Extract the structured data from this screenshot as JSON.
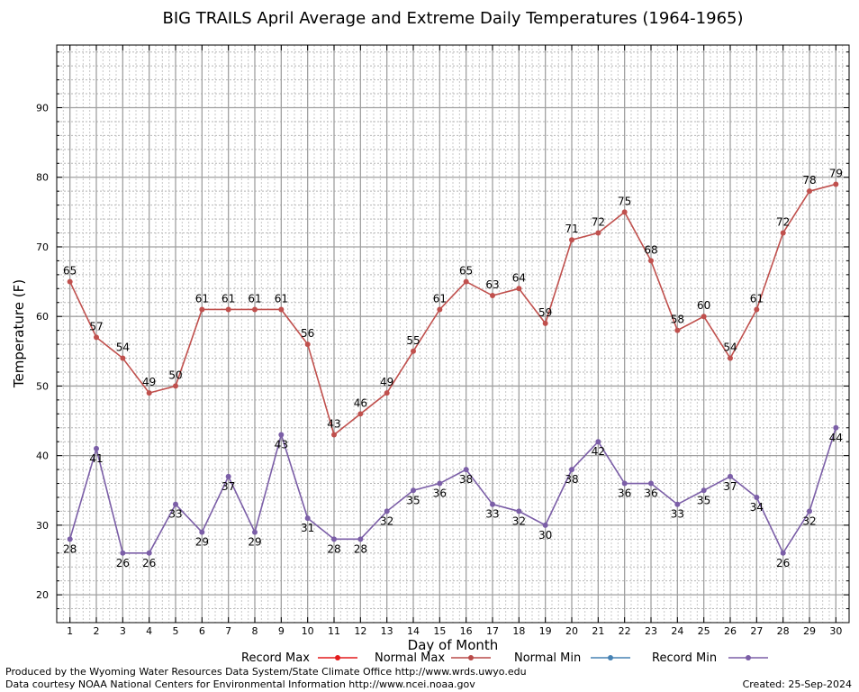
{
  "chart_data": {
    "type": "line",
    "title": "BIG TRAILS April Average and Extreme Daily Temperatures (1964-1965)",
    "xlabel": "Day of Month",
    "ylabel": "Temperature (F)",
    "x": [
      1,
      2,
      3,
      4,
      5,
      6,
      7,
      8,
      9,
      10,
      11,
      12,
      13,
      14,
      15,
      16,
      17,
      18,
      19,
      20,
      21,
      22,
      23,
      24,
      25,
      26,
      27,
      28,
      29,
      30
    ],
    "xlim": [
      0.5,
      30.5
    ],
    "ylim": [
      16,
      99
    ],
    "yticks": [
      20,
      30,
      40,
      50,
      60,
      70,
      80,
      90
    ],
    "grid": true,
    "legend": [
      {
        "name": "Record Max",
        "color": "#e41a1c"
      },
      {
        "name": "Normal Max",
        "color": "#b94a48"
      },
      {
        "name": "Normal Min",
        "color": "#4682b4"
      },
      {
        "name": "Record Min",
        "color": "#7b5ea7"
      }
    ],
    "series": [
      {
        "name": "Record Max",
        "color": "#c0504d",
        "label_pos": "above",
        "values": [
          65,
          57,
          54,
          49,
          50,
          61,
          61,
          61,
          61,
          56,
          43,
          46,
          49,
          55,
          61,
          65,
          63,
          64,
          59,
          71,
          72,
          75,
          68,
          58,
          60,
          54,
          61,
          72,
          78,
          79
        ]
      },
      {
        "name": "Record Min",
        "color": "#7b5ea7",
        "label_pos": "below",
        "values": [
          28,
          41,
          26,
          26,
          33,
          29,
          37,
          29,
          43,
          31,
          28,
          28,
          32,
          35,
          36,
          38,
          33,
          32,
          30,
          38,
          42,
          36,
          36,
          33,
          35,
          37,
          34,
          26,
          32,
          44
        ]
      }
    ]
  },
  "footer": {
    "produced_by": "Produced by the Wyoming Water Resources Data System/State Climate Office http://www.wrds.uwyo.edu",
    "courtesy": "Data courtesy NOAA National Centers for Environmental Information http://www.ncei.noaa.gov",
    "created": "Created:  25-Sep-2024"
  }
}
